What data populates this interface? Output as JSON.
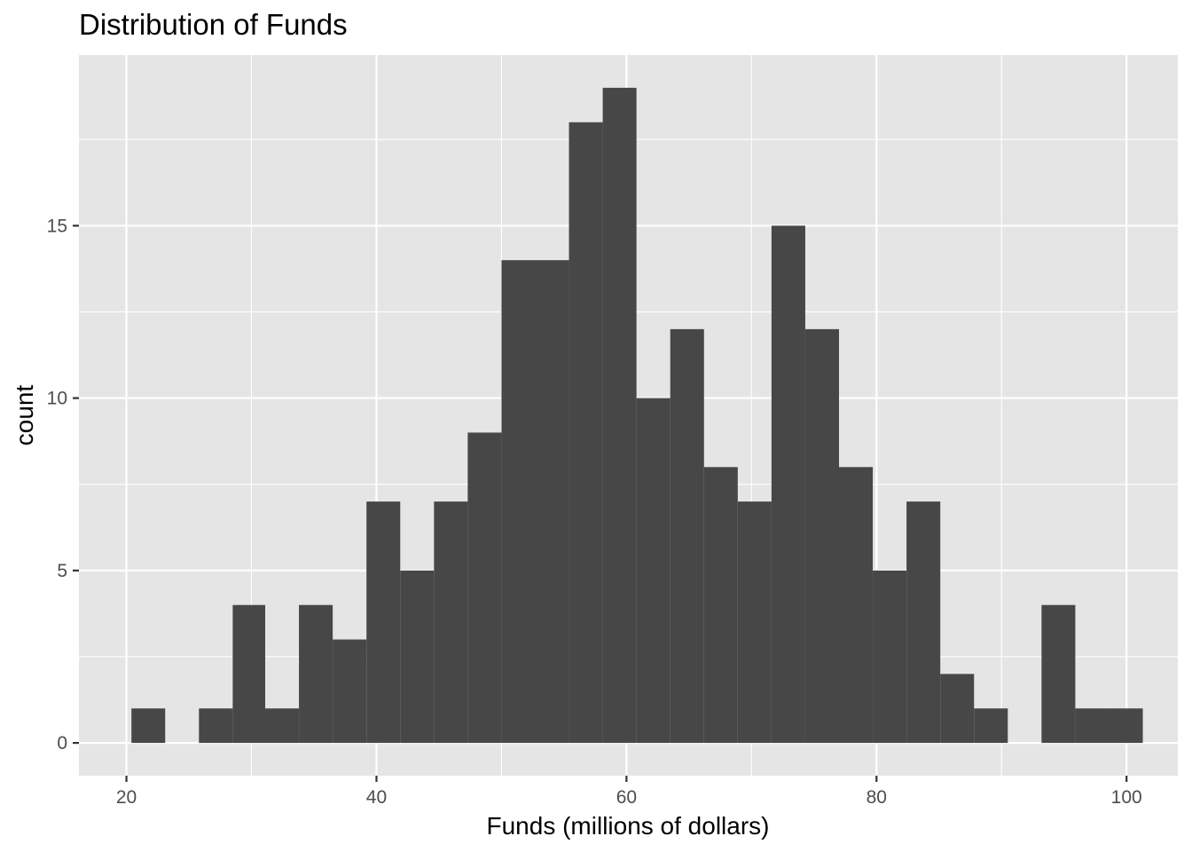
{
  "chart_data": {
    "type": "bar",
    "subtype": "histogram",
    "title": "Distribution of Funds",
    "xlabel": "Funds (millions of dollars)",
    "ylabel": "count",
    "xlim": [
      16.2,
      104.1
    ],
    "ylim": [
      -0.95,
      19.95
    ],
    "x_ticks": [
      20,
      40,
      60,
      80,
      100
    ],
    "y_ticks": [
      0,
      5,
      10,
      15
    ],
    "x_minor": [
      30,
      50,
      70,
      90
    ],
    "y_minor": [
      2.5,
      7.5,
      12.5,
      17.5
    ],
    "bins": [
      {
        "x0": 20.4,
        "x1": 23.1,
        "count": 1
      },
      {
        "x0": 23.1,
        "x1": 25.8,
        "count": 0
      },
      {
        "x0": 25.8,
        "x1": 28.5,
        "count": 1
      },
      {
        "x0": 28.5,
        "x1": 31.1,
        "count": 4
      },
      {
        "x0": 31.1,
        "x1": 33.8,
        "count": 1
      },
      {
        "x0": 33.8,
        "x1": 36.5,
        "count": 4
      },
      {
        "x0": 36.5,
        "x1": 39.2,
        "count": 3
      },
      {
        "x0": 39.2,
        "x1": 41.9,
        "count": 7
      },
      {
        "x0": 41.9,
        "x1": 44.6,
        "count": 5
      },
      {
        "x0": 44.6,
        "x1": 47.3,
        "count": 7
      },
      {
        "x0": 47.3,
        "x1": 50.0,
        "count": 9
      },
      {
        "x0": 50.0,
        "x1": 52.7,
        "count": 14
      },
      {
        "x0": 52.7,
        "x1": 55.4,
        "count": 14
      },
      {
        "x0": 55.4,
        "x1": 58.1,
        "count": 18
      },
      {
        "x0": 58.1,
        "x1": 60.8,
        "count": 19
      },
      {
        "x0": 60.8,
        "x1": 63.5,
        "count": 10
      },
      {
        "x0": 63.5,
        "x1": 66.2,
        "count": 12
      },
      {
        "x0": 66.2,
        "x1": 68.9,
        "count": 8
      },
      {
        "x0": 68.9,
        "x1": 71.6,
        "count": 7
      },
      {
        "x0": 71.6,
        "x1": 74.3,
        "count": 15
      },
      {
        "x0": 74.3,
        "x1": 77.0,
        "count": 12
      },
      {
        "x0": 77.0,
        "x1": 79.7,
        "count": 8
      },
      {
        "x0": 79.7,
        "x1": 82.4,
        "count": 5
      },
      {
        "x0": 82.4,
        "x1": 85.1,
        "count": 7
      },
      {
        "x0": 85.1,
        "x1": 87.8,
        "count": 2
      },
      {
        "x0": 87.8,
        "x1": 90.5,
        "count": 1
      },
      {
        "x0": 90.5,
        "x1": 93.2,
        "count": 0
      },
      {
        "x0": 93.2,
        "x1": 95.9,
        "count": 4
      },
      {
        "x0": 95.9,
        "x1": 98.6,
        "count": 1
      },
      {
        "x0": 98.6,
        "x1": 101.3,
        "count": 1
      }
    ],
    "grid": true,
    "legend": "none",
    "colors": {
      "panel_background": "#e5e5e5",
      "grid": "#ffffff",
      "bar_fill": "#474747",
      "tick_label": "#4d4d4d",
      "tick_mark": "#333333",
      "text": "#000000"
    }
  }
}
